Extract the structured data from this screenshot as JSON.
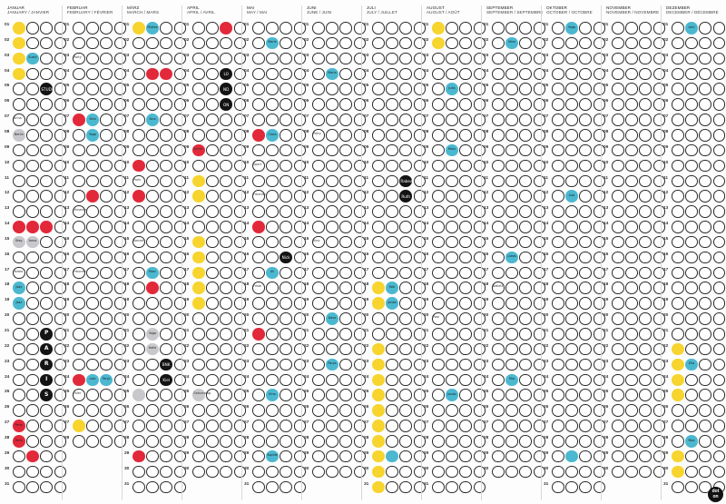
{
  "months": [
    {
      "de": "JANUAR",
      "en_fr": "JANUARY / JANVIER"
    },
    {
      "de": "FEBRUAR",
      "en_fr": "FEBRUARY / FÉVRIER"
    },
    {
      "de": "MÄRZ",
      "en_fr": "MARCH / MARS"
    },
    {
      "de": "APRIL",
      "en_fr": "APRIL / AVRIL"
    },
    {
      "de": "MAI",
      "en_fr": "MAY / MAI"
    },
    {
      "de": "JUNI",
      "en_fr": "JUNE / JUIN"
    },
    {
      "de": "JULI",
      "en_fr": "JULY / JUILLET"
    },
    {
      "de": "AUGUST",
      "en_fr": "AUGUST / AOÛT"
    },
    {
      "de": "SEPTEMBER",
      "en_fr": "SEPTEMBER / SEPTEMBRE"
    },
    {
      "de": "OKTOBER",
      "en_fr": "OCTOBER / OCTOBRE"
    },
    {
      "de": "NOVEMBER",
      "en_fr": "NOVEMBER / NOVEMBRE"
    },
    {
      "de": "DEZEMBER",
      "en_fr": "DECEMBER / DÉCEMBRE"
    }
  ],
  "days_per_month": [
    31,
    28,
    31,
    30,
    31,
    30,
    31,
    31,
    30,
    31,
    30,
    31
  ],
  "dots_per_day": 4,
  "colors": {
    "yellow": "#f7d42e",
    "red": "#e2293a",
    "blue": "#4bb8d0",
    "black": "#141414",
    "grey": "#c8c8cc",
    "outline": "#2b2b2b"
  },
  "stickers": [
    {
      "month": 1,
      "day": 1,
      "slot": 0,
      "color": "yellow",
      "text": ""
    },
    {
      "month": 1,
      "day": 2,
      "slot": 0,
      "color": "yellow",
      "text": ""
    },
    {
      "month": 1,
      "day": 3,
      "slot": 0,
      "color": "yellow",
      "text": ""
    },
    {
      "month": 1,
      "day": 3,
      "slot": 1,
      "color": "blue",
      "text": "Sushi"
    },
    {
      "month": 1,
      "day": 4,
      "slot": 0,
      "color": "yellow",
      "text": ""
    },
    {
      "month": 1,
      "day": 5,
      "slot": 2,
      "color": "black",
      "text": "STUDIO"
    },
    {
      "month": 1,
      "day": 8,
      "slot": 0,
      "color": "grey",
      "text": "Berlin"
    },
    {
      "month": 1,
      "day": 14,
      "slot": 0,
      "color": "red",
      "text": ""
    },
    {
      "month": 1,
      "day": 14,
      "slot": 1,
      "color": "red",
      "text": ""
    },
    {
      "month": 1,
      "day": 14,
      "slot": 2,
      "color": "red",
      "text": ""
    },
    {
      "month": 1,
      "day": 15,
      "slot": 0,
      "color": "grey",
      "text": "Stay"
    },
    {
      "month": 1,
      "day": 15,
      "slot": 1,
      "color": "grey",
      "text": "Anna"
    },
    {
      "month": 1,
      "day": 18,
      "slot": 0,
      "color": "blue",
      "text": "Jazz"
    },
    {
      "month": 1,
      "day": 19,
      "slot": 0,
      "color": "blue",
      "text": "Jazz"
    },
    {
      "month": 1,
      "day": 21,
      "slot": 2,
      "color": "black",
      "text": "P",
      "big": true
    },
    {
      "month": 1,
      "day": 22,
      "slot": 2,
      "color": "black",
      "text": "A",
      "big": true
    },
    {
      "month": 1,
      "day": 23,
      "slot": 2,
      "color": "black",
      "text": "R",
      "big": true
    },
    {
      "month": 1,
      "day": 24,
      "slot": 2,
      "color": "black",
      "text": "I",
      "big": true
    },
    {
      "month": 1,
      "day": 25,
      "slot": 2,
      "color": "black",
      "text": "S",
      "big": true
    },
    {
      "month": 1,
      "day": 27,
      "slot": 0,
      "color": "red",
      "text": "Party"
    },
    {
      "month": 1,
      "day": 28,
      "slot": 0,
      "color": "red",
      "text": "Party"
    },
    {
      "month": 1,
      "day": 29,
      "slot": 1,
      "color": "red",
      "text": ""
    },
    {
      "month": 2,
      "day": 7,
      "slot": 0,
      "color": "red",
      "text": ""
    },
    {
      "month": 2,
      "day": 7,
      "slot": 1,
      "color": "blue",
      "text": "Sina"
    },
    {
      "month": 2,
      "day": 8,
      "slot": 1,
      "color": "blue",
      "text": "Yoga"
    },
    {
      "month": 2,
      "day": 12,
      "slot": 1,
      "color": "red",
      "text": ""
    },
    {
      "month": 2,
      "day": 24,
      "slot": 1,
      "color": "blue",
      "text": "Lola"
    },
    {
      "month": 2,
      "day": 24,
      "slot": 2,
      "color": "blue",
      "text": "Tanja"
    },
    {
      "month": 2,
      "day": 24,
      "slot": 0,
      "color": "red",
      "text": ""
    },
    {
      "month": 2,
      "day": 27,
      "slot": 0,
      "color": "yellow",
      "text": ""
    },
    {
      "month": 3,
      "day": 1,
      "slot": 0,
      "color": "yellow",
      "text": ""
    },
    {
      "month": 3,
      "day": 1,
      "slot": 1,
      "color": "blue",
      "text": "Pilates"
    },
    {
      "month": 3,
      "day": 4,
      "slot": 1,
      "color": "red",
      "text": ""
    },
    {
      "month": 3,
      "day": 4,
      "slot": 2,
      "color": "red",
      "text": ""
    },
    {
      "month": 3,
      "day": 7,
      "slot": 1,
      "color": "blue",
      "text": "Sina"
    },
    {
      "month": 3,
      "day": 10,
      "slot": 0,
      "color": "red",
      "text": ""
    },
    {
      "month": 3,
      "day": 12,
      "slot": 0,
      "color": "red",
      "text": ""
    },
    {
      "month": 3,
      "day": 17,
      "slot": 1,
      "color": "blue",
      "text": "Marc"
    },
    {
      "month": 3,
      "day": 18,
      "slot": 1,
      "color": "red",
      "text": ""
    },
    {
      "month": 3,
      "day": 21,
      "slot": 1,
      "color": "grey",
      "text": "Yoga"
    },
    {
      "month": 3,
      "day": 22,
      "slot": 1,
      "color": "grey",
      "text": "Halle"
    },
    {
      "month": 3,
      "day": 23,
      "slot": 2,
      "color": "black",
      "text": "BNK"
    },
    {
      "month": 3,
      "day": 24,
      "slot": 2,
      "color": "black",
      "text": "Kiel"
    },
    {
      "month": 3,
      "day": 25,
      "slot": 0,
      "color": "grey",
      "text": ""
    },
    {
      "month": 3,
      "day": 29,
      "slot": 0,
      "color": "red",
      "text": ""
    },
    {
      "month": 4,
      "day": 1,
      "slot": 2,
      "color": "red",
      "text": ""
    },
    {
      "month": 4,
      "day": 4,
      "slot": 2,
      "color": "black",
      "text": "LO"
    },
    {
      "month": 4,
      "day": 5,
      "slot": 2,
      "color": "black",
      "text": "ND"
    },
    {
      "month": 4,
      "day": 6,
      "slot": 2,
      "color": "black",
      "text": "ON"
    },
    {
      "month": 4,
      "day": 9,
      "slot": 0,
      "color": "red",
      "text": ""
    },
    {
      "month": 4,
      "day": 11,
      "slot": 0,
      "color": "yellow",
      "text": ""
    },
    {
      "month": 4,
      "day": 12,
      "slot": 0,
      "color": "yellow",
      "text": ""
    },
    {
      "month": 4,
      "day": 15,
      "slot": 0,
      "color": "yellow",
      "text": ""
    },
    {
      "month": 4,
      "day": 16,
      "slot": 0,
      "color": "yellow",
      "text": ""
    },
    {
      "month": 4,
      "day": 17,
      "slot": 0,
      "color": "yellow",
      "text": ""
    },
    {
      "month": 4,
      "day": 18,
      "slot": 0,
      "color": "yellow",
      "text": ""
    },
    {
      "month": 4,
      "day": 19,
      "slot": 0,
      "color": "yellow",
      "text": ""
    },
    {
      "month": 4,
      "day": 25,
      "slot": 0,
      "color": "grey",
      "text": ""
    },
    {
      "month": 5,
      "day": 2,
      "slot": 1,
      "color": "blue",
      "text": "Marie"
    },
    {
      "month": 5,
      "day": 8,
      "slot": 0,
      "color": "red",
      "text": ""
    },
    {
      "month": 5,
      "day": 8,
      "slot": 1,
      "color": "blue",
      "text": "Clara"
    },
    {
      "month": 5,
      "day": 14,
      "slot": 0,
      "color": "red",
      "text": ""
    },
    {
      "month": 5,
      "day": 16,
      "slot": 2,
      "color": "black",
      "text": "Nick"
    },
    {
      "month": 5,
      "day": 17,
      "slot": 1,
      "color": "blue",
      "text": "Ali"
    },
    {
      "month": 5,
      "day": 21,
      "slot": 0,
      "color": "red",
      "text": ""
    },
    {
      "month": 5,
      "day": 25,
      "slot": 1,
      "color": "blue",
      "text": "Kino"
    },
    {
      "month": 5,
      "day": 29,
      "slot": 1,
      "color": "blue",
      "text": "Sophie"
    },
    {
      "month": 6,
      "day": 4,
      "slot": 1,
      "color": "blue",
      "text": "Mario"
    },
    {
      "month": 6,
      "day": 20,
      "slot": 1,
      "color": "blue",
      "text": "Dave"
    },
    {
      "month": 6,
      "day": 23,
      "slot": 1,
      "color": "blue",
      "text": "Paula"
    },
    {
      "month": 7,
      "day": 11,
      "slot": 2,
      "color": "black",
      "text": "Rabea"
    },
    {
      "month": 7,
      "day": 12,
      "slot": 2,
      "color": "black",
      "text": "Ruth"
    },
    {
      "month": 7,
      "day": 18,
      "slot": 0,
      "color": "yellow",
      "text": ""
    },
    {
      "month": 7,
      "day": 18,
      "slot": 1,
      "color": "blue",
      "text": "Tobi"
    },
    {
      "month": 7,
      "day": 19,
      "slot": 0,
      "color": "yellow",
      "text": ""
    },
    {
      "month": 7,
      "day": 19,
      "slot": 1,
      "color": "blue",
      "text": "Jonas"
    },
    {
      "month": 7,
      "day": 22,
      "slot": 0,
      "color": "yellow",
      "text": ""
    },
    {
      "month": 7,
      "day": 23,
      "slot": 0,
      "color": "yellow",
      "text": ""
    },
    {
      "month": 7,
      "day": 24,
      "slot": 0,
      "color": "yellow",
      "text": ""
    },
    {
      "month": 7,
      "day": 25,
      "slot": 0,
      "color": "yellow",
      "text": ""
    },
    {
      "month": 7,
      "day": 26,
      "slot": 0,
      "color": "yellow",
      "text": ""
    },
    {
      "month": 7,
      "day": 27,
      "slot": 0,
      "color": "yellow",
      "text": ""
    },
    {
      "month": 7,
      "day": 28,
      "slot": 0,
      "color": "yellow",
      "text": ""
    },
    {
      "month": 7,
      "day": 29,
      "slot": 0,
      "color": "yellow",
      "text": ""
    },
    {
      "month": 7,
      "day": 29,
      "slot": 1,
      "color": "blue",
      "text": ""
    },
    {
      "month": 7,
      "day": 30,
      "slot": 0,
      "color": "yellow",
      "text": ""
    },
    {
      "month": 7,
      "day": 31,
      "slot": 0,
      "color": "yellow",
      "text": ""
    },
    {
      "month": 8,
      "day": 1,
      "slot": 0,
      "color": "yellow",
      "text": ""
    },
    {
      "month": 8,
      "day": 2,
      "slot": 0,
      "color": "yellow",
      "text": ""
    },
    {
      "month": 8,
      "day": 5,
      "slot": 1,
      "color": "blue",
      "text": "Julia"
    },
    {
      "month": 8,
      "day": 9,
      "slot": 1,
      "color": "blue",
      "text": "Malu"
    },
    {
      "month": 8,
      "day": 25,
      "slot": 1,
      "color": "blue",
      "text": "Jacob"
    },
    {
      "month": 9,
      "day": 2,
      "slot": 1,
      "color": "blue",
      "text": "Nina"
    },
    {
      "month": 9,
      "day": 16,
      "slot": 1,
      "color": "blue",
      "text": "Lukas"
    },
    {
      "month": 9,
      "day": 24,
      "slot": 1,
      "color": "blue",
      "text": "Mia"
    },
    {
      "month": 10,
      "day": 1,
      "slot": 1,
      "color": "blue",
      "text": "Yoga"
    },
    {
      "month": 10,
      "day": 12,
      "slot": 1,
      "color": "blue",
      "text": "Lisa"
    },
    {
      "month": 10,
      "day": 29,
      "slot": 1,
      "color": "blue",
      "text": ""
    },
    {
      "month": 12,
      "day": 1,
      "slot": 1,
      "color": "blue",
      "text": "Leni"
    },
    {
      "month": 12,
      "day": 22,
      "slot": 0,
      "color": "yellow",
      "text": ""
    },
    {
      "month": 12,
      "day": 23,
      "slot": 0,
      "color": "yellow",
      "text": ""
    },
    {
      "month": 12,
      "day": 23,
      "slot": 1,
      "color": "blue",
      "text": "Ella"
    },
    {
      "month": 12,
      "day": 24,
      "slot": 0,
      "color": "yellow",
      "text": ""
    },
    {
      "month": 12,
      "day": 25,
      "slot": 0,
      "color": "yellow",
      "text": ""
    },
    {
      "month": 12,
      "day": 28,
      "slot": 1,
      "color": "blue",
      "text": "Max"
    },
    {
      "month": 12,
      "day": 29,
      "slot": 0,
      "color": "yellow",
      "text": ""
    },
    {
      "month": 12,
      "day": 30,
      "slot": 0,
      "color": "yellow",
      "text": ""
    }
  ],
  "notes": [
    {
      "month": 1,
      "day": 7,
      "text": "Anna"
    },
    {
      "month": 1,
      "day": 17,
      "text": "Teatro"
    },
    {
      "month": 2,
      "day": 3,
      "text": "Party"
    },
    {
      "month": 2,
      "day": 13,
      "text": "Museum"
    },
    {
      "month": 2,
      "day": 17,
      "text": "Freunde"
    },
    {
      "month": 2,
      "day": 25,
      "text": "Feier"
    },
    {
      "month": 3,
      "day": 11,
      "text": "Paris"
    },
    {
      "month": 3,
      "day": 15,
      "text": "Konzert"
    },
    {
      "month": 4,
      "day": 9,
      "text": "Kinder"
    },
    {
      "month": 4,
      "day": 25,
      "text": "Geburtstag"
    },
    {
      "month": 5,
      "day": 10,
      "text": "Sport"
    },
    {
      "month": 5,
      "day": 12,
      "text": "Freunde"
    },
    {
      "month": 5,
      "day": 18,
      "text": "Frisör"
    },
    {
      "month": 6,
      "day": 8,
      "text": "Party"
    },
    {
      "month": 6,
      "day": 15,
      "text": "Kino"
    },
    {
      "month": 8,
      "day": 20,
      "text": "Pool"
    },
    {
      "month": 9,
      "day": 18,
      "text": "Ballett"
    }
  ],
  "brand": {
    "line1": "dot",
    "line2": "on"
  }
}
